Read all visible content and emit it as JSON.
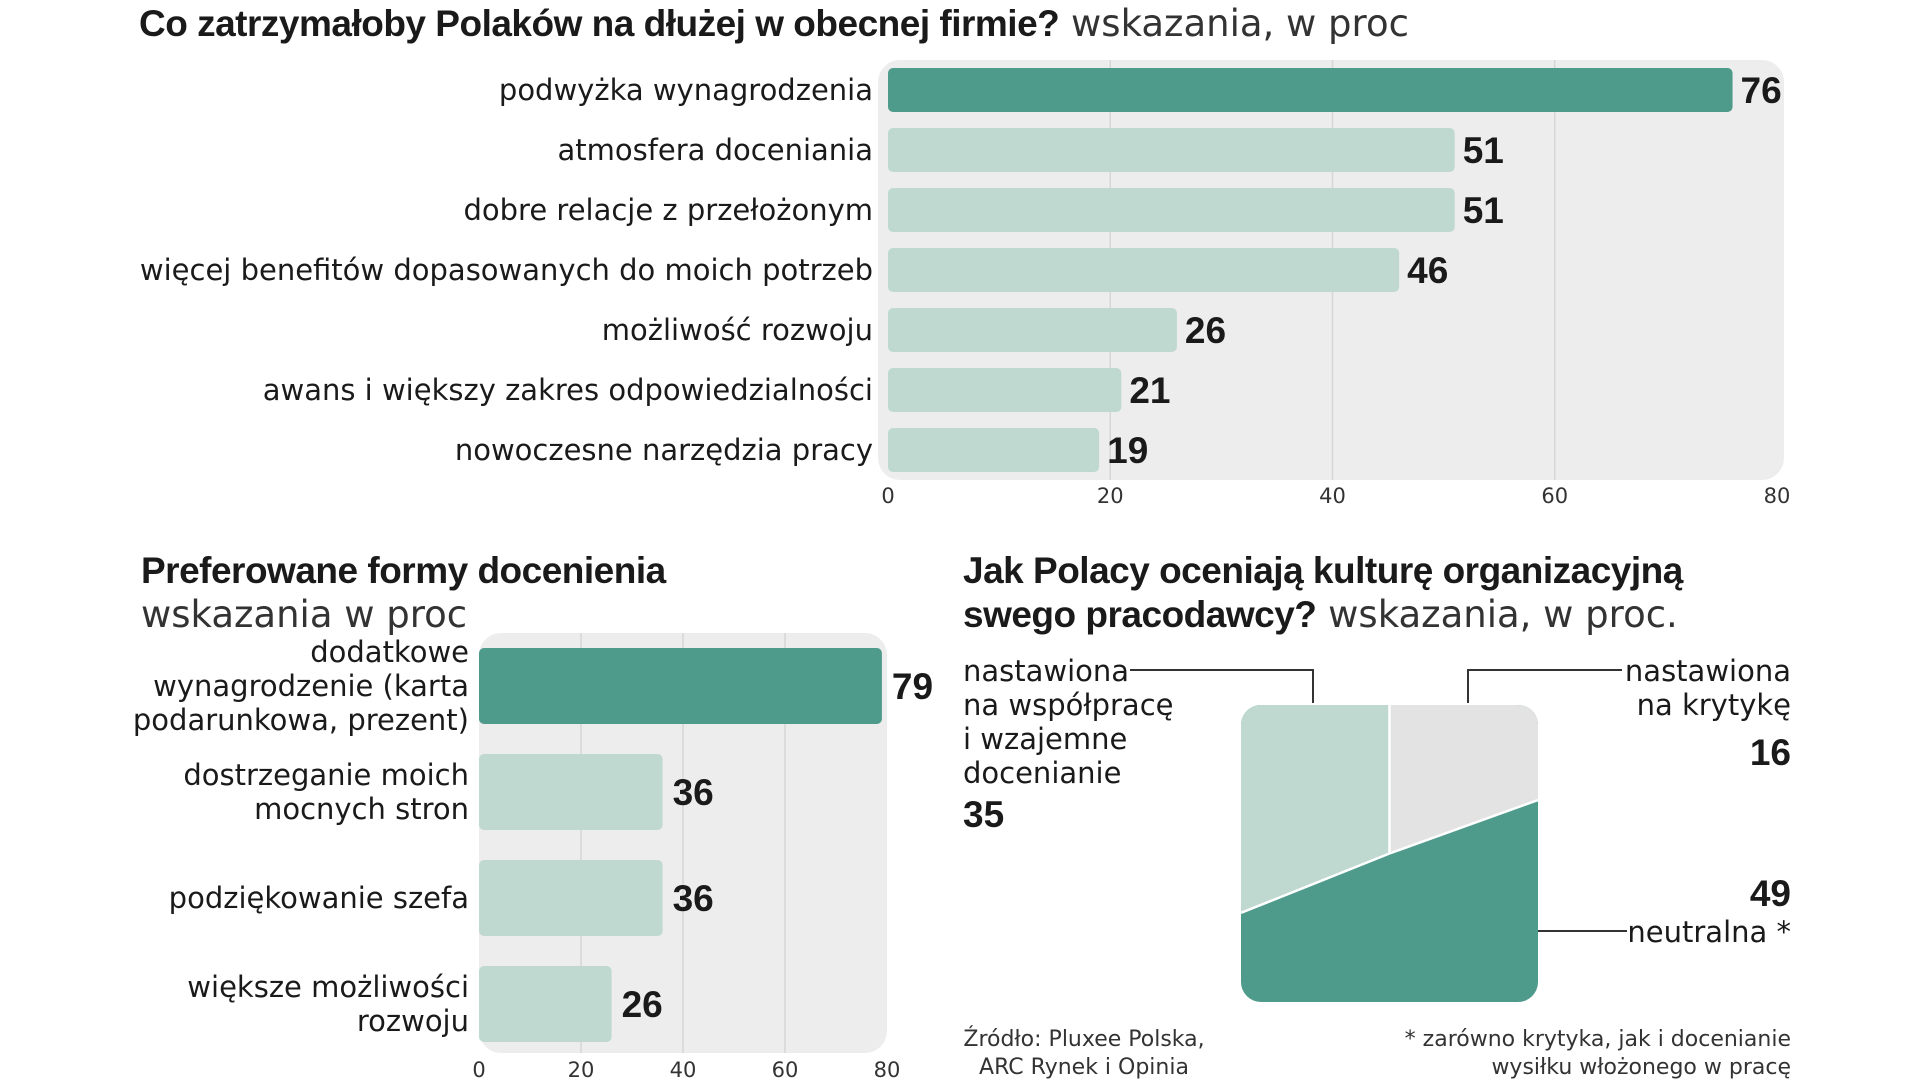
{
  "colors": {
    "accent": "#4e9a8b",
    "light": "#bfd9d1",
    "panel": "#ededed",
    "pie_light": "#e3e3e3"
  },
  "chart1": {
    "title": "Co zatrzymałoby Polaków  na dłużej w obecnej firmie?",
    "subtitle": "wskazania, w proc"
  },
  "chart2": {
    "title": "Preferowane formy docenienia",
    "subtitle": "wskazania w proc"
  },
  "chart3": {
    "title_line1": "Jak Polacy oceniają kulturę organizacyjną",
    "title_line2": "swego pracodawcy?",
    "subtitle": "wskazania, w proc.",
    "slice_labels": {
      "wspolpraca": [
        "nastawiona",
        "na współpracę",
        "i wzajemne",
        "docenianie"
      ],
      "krytyka": [
        "nastawiona",
        "na krytykę"
      ],
      "neutralna": [
        "neutralna *"
      ]
    }
  },
  "footer": {
    "source": [
      "Źródło: Pluxee Polska,",
      "ARC Rynek i Opinia"
    ],
    "footnote": [
      "* zarówno krytyka, jak i docenianie",
      "wysiłku włożonego w pracę"
    ]
  },
  "chart_data": [
    {
      "type": "bar",
      "orientation": "horizontal",
      "title": "Co zatrzymałoby Polaków  na dłużej w obecnej firmie?",
      "subtitle": "wskazania, w proc",
      "categories": [
        "podwyżka wynagrodzenia",
        "atmosfera doceniania",
        "dobre relacje z przełożonym",
        "więcej benefitów dopasowanych do moich potrzeb",
        "możliwość rozwoju",
        "awans i większy zakres odpowiedzialności",
        "nowoczesne narzędzia pracy"
      ],
      "values": [
        76,
        51,
        51,
        46,
        26,
        21,
        19
      ],
      "xlim": [
        0,
        80
      ],
      "xticks": [
        0,
        20,
        40,
        60,
        80
      ],
      "grid": true
    },
    {
      "type": "bar",
      "orientation": "horizontal",
      "title": "Preferowane formy docenienia",
      "subtitle": "wskazania w proc",
      "categories": [
        "dodatkowe wynagrodzenie (karta podarunkowa, prezent)",
        "dostrzeganie moich mocnych stron",
        "podziękowanie szefa",
        "większe możliwości rozwoju"
      ],
      "category_lines": [
        [
          "dodatkowe",
          "wynagrodzenie (karta",
          "podarunkowa, prezent)"
        ],
        [
          "dostrzeganie moich",
          "mocnych stron"
        ],
        [
          "podziękowanie szefa"
        ],
        [
          "większe możliwości",
          "rozwoju"
        ]
      ],
      "values": [
        79,
        36,
        36,
        26
      ],
      "xlim": [
        0,
        80
      ],
      "xticks": [
        0,
        20,
        40,
        60,
        80
      ],
      "grid": true
    },
    {
      "type": "pie",
      "title": "Jak Polacy oceniają kulturę organizacyjną swego pracodawcy?",
      "subtitle": "wskazania, w proc.",
      "labels": [
        "nastawiona na współpracę i wzajemne docenianie",
        "nastawiona na krytykę",
        "neutralna *"
      ],
      "values": [
        35,
        16,
        49
      ]
    }
  ]
}
